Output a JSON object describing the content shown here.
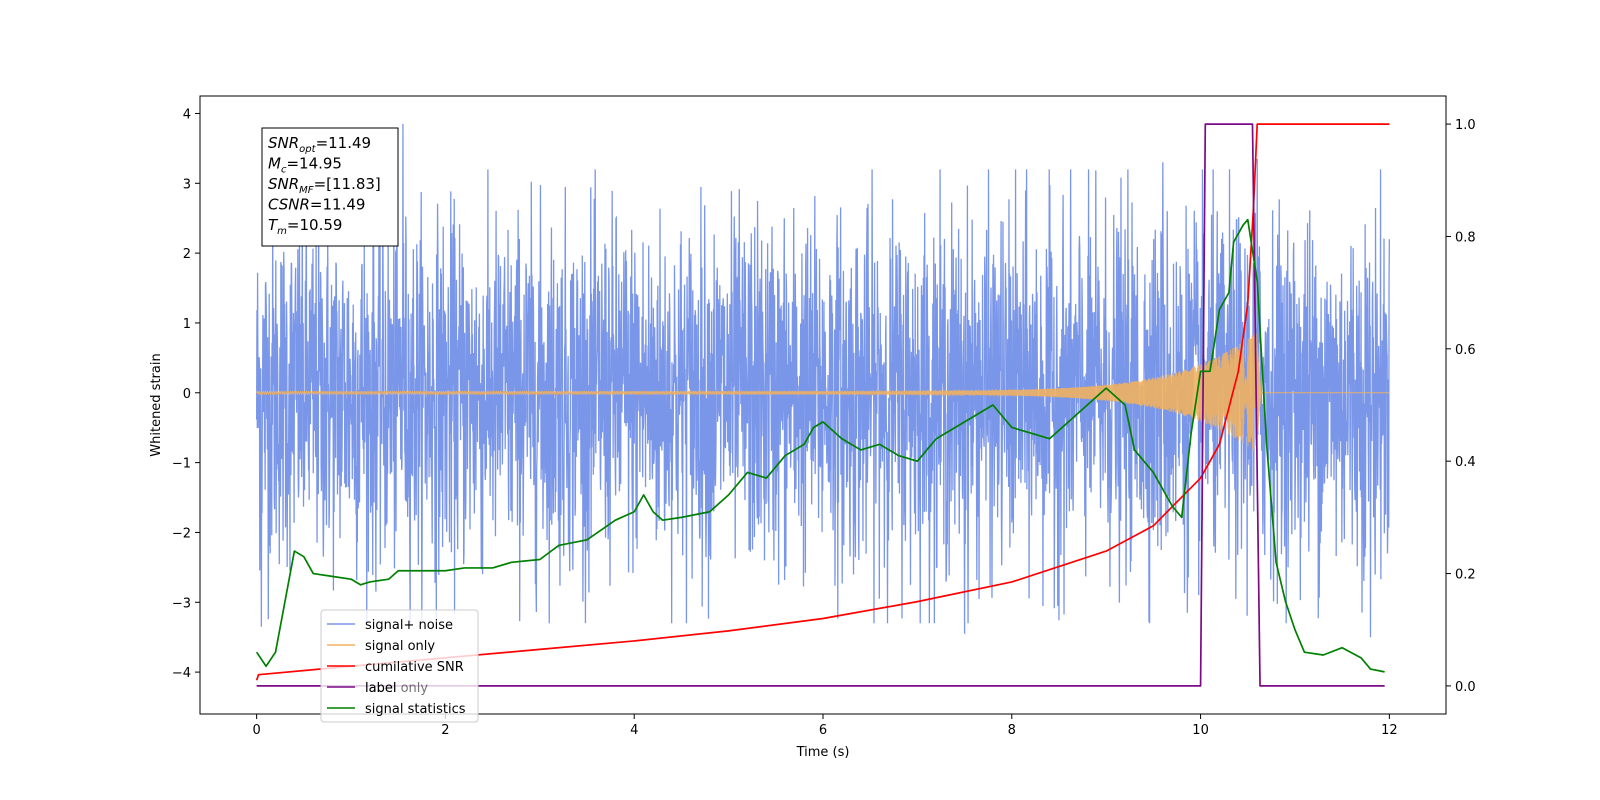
{
  "chart_data": {
    "type": "line",
    "xlabel": "Time (s)",
    "ylabel_left": "Whitened strain",
    "ylabel_right": "",
    "xlim": [
      -0.6,
      12.6
    ],
    "ylim_left": [
      -4.6,
      4.25
    ],
    "ylim_right": [
      -0.05,
      1.05
    ],
    "x_ticks": [
      0,
      2,
      4,
      6,
      8,
      10,
      12
    ],
    "y_ticks_left": [
      -4,
      -3,
      -2,
      -1,
      0,
      1,
      2,
      3,
      4
    ],
    "y_ticks_right": [
      0.0,
      0.2,
      0.4,
      0.6,
      0.8,
      1.0
    ],
    "grid": false,
    "legend_position": "lower-left",
    "annotation": {
      "lines": [
        {
          "name": "SNR",
          "sub": "opt",
          "value": "=11.49"
        },
        {
          "name": "M",
          "sub": "c",
          "value": "=14.95"
        },
        {
          "name": "SNR",
          "sub": "MF",
          "value": "=[11.83]"
        },
        {
          "name": "CSNR",
          "sub": "",
          "value": "=11.49"
        },
        {
          "name": "T",
          "sub": "m",
          "value": "=10.59"
        }
      ]
    },
    "series": [
      {
        "name": "signal+ noise",
        "axis": "left",
        "color": "#7a96e8",
        "description_t_range": [
          0,
          12
        ],
        "typical_amplitude": 1.3,
        "notable_peaks": [
          {
            "x": 1.55,
            "y": 3.85
          },
          {
            "x": 0.05,
            "y": -3.35
          },
          {
            "x": 9.6,
            "y": 3.3
          },
          {
            "x": 10.6,
            "y": 3.35
          },
          {
            "x": 7.5,
            "y": -3.45
          },
          {
            "x": 11.8,
            "y": -3.5
          }
        ]
      },
      {
        "name": "signal only",
        "axis": "left",
        "color": "#f0b060",
        "merger_time": 10.59,
        "peak_amplitude": 0.85
      },
      {
        "name": "cumilative SNR",
        "axis": "right",
        "color": "#ff0000",
        "points": [
          [
            0.0,
            0.01
          ],
          [
            0.02,
            0.02
          ],
          [
            1,
            0.035
          ],
          [
            2,
            0.05
          ],
          [
            3,
            0.065
          ],
          [
            4,
            0.08
          ],
          [
            5,
            0.098
          ],
          [
            6,
            0.12
          ],
          [
            7,
            0.15
          ],
          [
            8,
            0.185
          ],
          [
            9,
            0.24
          ],
          [
            9.5,
            0.285
          ],
          [
            10,
            0.37
          ],
          [
            10.2,
            0.43
          ],
          [
            10.4,
            0.56
          ],
          [
            10.5,
            0.68
          ],
          [
            10.56,
            0.85
          ],
          [
            10.6,
            1.0
          ],
          [
            12,
            1.0
          ]
        ]
      },
      {
        "name": "label",
        "axis": "right",
        "color": "#7b0a86",
        "points": [
          [
            0,
            0.0
          ],
          [
            10.0,
            0.0
          ],
          [
            10.05,
            1.0
          ],
          [
            10.55,
            1.0
          ],
          [
            10.63,
            0.0
          ],
          [
            11.95,
            0.0
          ]
        ]
      },
      {
        "name": "signal statistics",
        "axis": "right",
        "color": "#008000",
        "points": [
          [
            0.0,
            0.06
          ],
          [
            0.1,
            0.035
          ],
          [
            0.2,
            0.06
          ],
          [
            0.3,
            0.15
          ],
          [
            0.4,
            0.24
          ],
          [
            0.5,
            0.23
          ],
          [
            0.6,
            0.2
          ],
          [
            0.8,
            0.195
          ],
          [
            1.0,
            0.19
          ],
          [
            1.1,
            0.18
          ],
          [
            1.2,
            0.185
          ],
          [
            1.4,
            0.19
          ],
          [
            1.5,
            0.205
          ],
          [
            1.7,
            0.205
          ],
          [
            2.0,
            0.205
          ],
          [
            2.2,
            0.21
          ],
          [
            2.5,
            0.21
          ],
          [
            2.7,
            0.22
          ],
          [
            3.0,
            0.225
          ],
          [
            3.2,
            0.25
          ],
          [
            3.5,
            0.26
          ],
          [
            3.8,
            0.295
          ],
          [
            4.0,
            0.31
          ],
          [
            4.1,
            0.34
          ],
          [
            4.2,
            0.31
          ],
          [
            4.3,
            0.295
          ],
          [
            4.5,
            0.3
          ],
          [
            4.8,
            0.31
          ],
          [
            5.0,
            0.34
          ],
          [
            5.2,
            0.38
          ],
          [
            5.4,
            0.37
          ],
          [
            5.5,
            0.39
          ],
          [
            5.6,
            0.41
          ],
          [
            5.8,
            0.43
          ],
          [
            5.9,
            0.46
          ],
          [
            6.0,
            0.47
          ],
          [
            6.2,
            0.44
          ],
          [
            6.4,
            0.42
          ],
          [
            6.6,
            0.43
          ],
          [
            6.8,
            0.41
          ],
          [
            7.0,
            0.4
          ],
          [
            7.2,
            0.44
          ],
          [
            7.4,
            0.46
          ],
          [
            7.6,
            0.48
          ],
          [
            7.8,
            0.5
          ],
          [
            8.0,
            0.46
          ],
          [
            8.2,
            0.45
          ],
          [
            8.4,
            0.44
          ],
          [
            8.6,
            0.47
          ],
          [
            8.8,
            0.5
          ],
          [
            9.0,
            0.53
          ],
          [
            9.2,
            0.5
          ],
          [
            9.3,
            0.42
          ],
          [
            9.5,
            0.38
          ],
          [
            9.7,
            0.32
          ],
          [
            9.8,
            0.3
          ],
          [
            9.9,
            0.45
          ],
          [
            10.0,
            0.56
          ],
          [
            10.1,
            0.56
          ],
          [
            10.2,
            0.67
          ],
          [
            10.3,
            0.7
          ],
          [
            10.35,
            0.79
          ],
          [
            10.45,
            0.82
          ],
          [
            10.5,
            0.83
          ],
          [
            10.6,
            0.72
          ],
          [
            10.7,
            0.43
          ],
          [
            10.8,
            0.22
          ],
          [
            10.9,
            0.15
          ],
          [
            11.0,
            0.1
          ],
          [
            11.1,
            0.06
          ],
          [
            11.3,
            0.055
          ],
          [
            11.5,
            0.068
          ],
          [
            11.7,
            0.05
          ],
          [
            11.8,
            0.03
          ],
          [
            11.95,
            0.025
          ]
        ]
      }
    ]
  },
  "legend": {
    "items": [
      {
        "label": "signal+ noise",
        "color": "#7a96e8"
      },
      {
        "label": "signal only",
        "color": "#f0b060"
      },
      {
        "label": "cumilative SNR",
        "color": "#ff0000"
      },
      {
        "label": "label",
        "color": "#7b0a86"
      },
      {
        "label": "signal statistics",
        "color": "#008000"
      }
    ],
    "hidden_text": "label only"
  }
}
